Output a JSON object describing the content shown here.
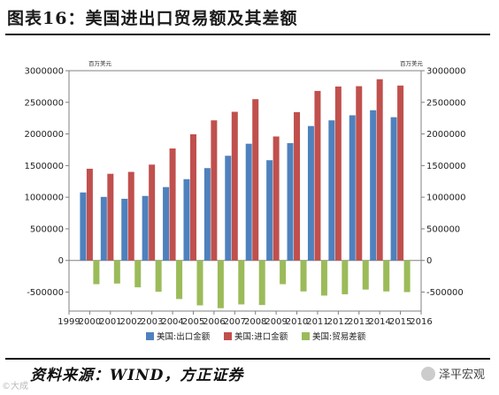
{
  "header": {
    "title": "图表16：美国进出口贸易额及其差额"
  },
  "footer": {
    "source": "资料来源：WIND，方正证券",
    "brand": "泽平宏观",
    "watermark": "©大成"
  },
  "chart_data": {
    "type": "bar",
    "unit_left": "百万美元",
    "unit_right": "百万美元",
    "x_ticks": [
      "1999",
      "2000",
      "2001",
      "2002",
      "2003",
      "2004",
      "2005",
      "2006",
      "2007",
      "2008",
      "2009",
      "2010",
      "2011",
      "2012",
      "2013",
      "2014",
      "2015",
      "2016"
    ],
    "categories": [
      "2000",
      "2001",
      "2002",
      "2003",
      "2004",
      "2005",
      "2006",
      "2007",
      "2008",
      "2009",
      "2010",
      "2011",
      "2012",
      "2013",
      "2014",
      "2015"
    ],
    "series": [
      {
        "name": "美国:出口金额",
        "color": "#4f81bd",
        "values": [
          1075000,
          1005000,
          975000,
          1020000,
          1160000,
          1285000,
          1460000,
          1655000,
          1845000,
          1585000,
          1855000,
          2125000,
          2215000,
          2295000,
          2375000,
          2265000
        ]
      },
      {
        "name": "美国:进口金额",
        "color": "#c0504d",
        "values": [
          1450000,
          1370000,
          1400000,
          1515000,
          1770000,
          1995000,
          2215000,
          2350000,
          2550000,
          1960000,
          2345000,
          2680000,
          2750000,
          2755000,
          2865000,
          2765000
        ]
      },
      {
        "name": "美国:贸易差额",
        "color": "#9bbb59",
        "values": [
          -375000,
          -365000,
          -425000,
          -495000,
          -610000,
          -710000,
          -755000,
          -695000,
          -705000,
          -375000,
          -490000,
          -555000,
          -535000,
          -460000,
          -490000,
          -500000
        ]
      }
    ],
    "ylim": [
      -800000,
      3000000
    ],
    "y_ticks": [
      -500000,
      0,
      500000,
      1000000,
      1500000,
      2000000,
      2500000,
      3000000
    ],
    "y_tick_labels": [
      "-500000",
      "0",
      "500000",
      "1000000",
      "1500000",
      "2000000",
      "2500000",
      "3000000"
    ],
    "legend_position": "bottom",
    "grid": false
  }
}
